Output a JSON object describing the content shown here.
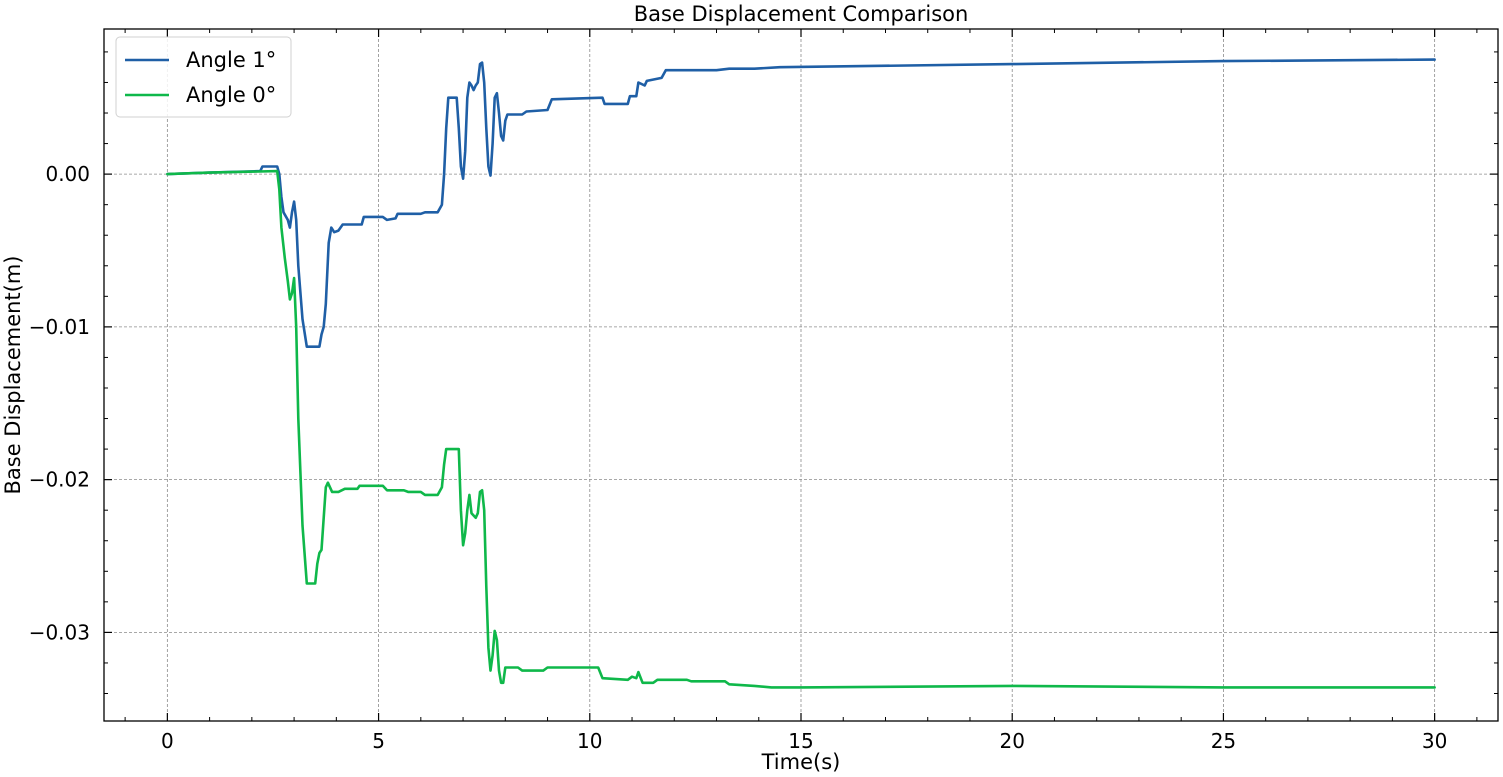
{
  "chart_data": {
    "type": "line",
    "title": "Base Displacement Comparison",
    "xlabel": "Time(s)",
    "ylabel": "Base Displacement(m)",
    "xlim": [
      -1.5,
      31.5
    ],
    "ylim": [
      -0.0358,
      0.0095
    ],
    "grid": true,
    "legend_position": "top-left",
    "x_ticks": [
      0,
      5,
      10,
      15,
      20,
      25,
      30
    ],
    "x_tick_labels": [
      "0",
      "5",
      "10",
      "15",
      "20",
      "25",
      "30"
    ],
    "y_ticks": [
      0.0,
      -0.01,
      -0.02,
      -0.03
    ],
    "y_tick_labels": [
      "0.00",
      "−0.01",
      "−0.02",
      "−0.03"
    ],
    "series": [
      {
        "name": "Angle 1°",
        "color": "#1f5fa6",
        "points": [
          [
            0,
            0.0
          ],
          [
            1.0,
            0.0001
          ],
          [
            2.2,
            0.0002
          ],
          [
            2.25,
            0.0005
          ],
          [
            2.6,
            0.0005
          ],
          [
            2.65,
            0.0
          ],
          [
            2.7,
            -0.0015
          ],
          [
            2.75,
            -0.0025
          ],
          [
            2.85,
            -0.003
          ],
          [
            2.9,
            -0.0035
          ],
          [
            2.95,
            -0.0025
          ],
          [
            3.0,
            -0.0018
          ],
          [
            3.05,
            -0.003
          ],
          [
            3.1,
            -0.006
          ],
          [
            3.2,
            -0.0095
          ],
          [
            3.3,
            -0.0113
          ],
          [
            3.6,
            -0.0113
          ],
          [
            3.65,
            -0.0105
          ],
          [
            3.7,
            -0.01
          ],
          [
            3.75,
            -0.0085
          ],
          [
            3.82,
            -0.0045
          ],
          [
            3.88,
            -0.0035
          ],
          [
            3.95,
            -0.0038
          ],
          [
            4.05,
            -0.0037
          ],
          [
            4.15,
            -0.0033
          ],
          [
            4.5,
            -0.0033
          ],
          [
            4.6,
            -0.0033
          ],
          [
            4.65,
            -0.0028
          ],
          [
            5.1,
            -0.0028
          ],
          [
            5.2,
            -0.003
          ],
          [
            5.4,
            -0.0029
          ],
          [
            5.45,
            -0.0026
          ],
          [
            6.0,
            -0.0026
          ],
          [
            6.1,
            -0.0025
          ],
          [
            6.4,
            -0.0025
          ],
          [
            6.5,
            -0.002
          ],
          [
            6.55,
            0.0
          ],
          [
            6.6,
            0.003
          ],
          [
            6.65,
            0.005
          ],
          [
            6.85,
            0.005
          ],
          [
            6.9,
            0.003
          ],
          [
            6.95,
            0.0005
          ],
          [
            7.0,
            -0.0003
          ],
          [
            7.05,
            0.0015
          ],
          [
            7.1,
            0.005
          ],
          [
            7.15,
            0.006
          ],
          [
            7.2,
            0.0058
          ],
          [
            7.25,
            0.0055
          ],
          [
            7.3,
            0.0058
          ],
          [
            7.35,
            0.006
          ],
          [
            7.4,
            0.0072
          ],
          [
            7.45,
            0.0073
          ],
          [
            7.5,
            0.006
          ],
          [
            7.55,
            0.003
          ],
          [
            7.6,
            0.0005
          ],
          [
            7.65,
            -0.0001
          ],
          [
            7.7,
            0.002
          ],
          [
            7.75,
            0.005
          ],
          [
            7.8,
            0.0053
          ],
          [
            7.85,
            0.004
          ],
          [
            7.9,
            0.0025
          ],
          [
            7.95,
            0.0022
          ],
          [
            8.0,
            0.0035
          ],
          [
            8.05,
            0.0039
          ],
          [
            8.4,
            0.0039
          ],
          [
            8.5,
            0.0041
          ],
          [
            9.0,
            0.0042
          ],
          [
            9.1,
            0.0049
          ],
          [
            10.3,
            0.005
          ],
          [
            10.35,
            0.0046
          ],
          [
            10.9,
            0.0046
          ],
          [
            10.95,
            0.0051
          ],
          [
            11.1,
            0.0051
          ],
          [
            11.15,
            0.006
          ],
          [
            11.3,
            0.0058
          ],
          [
            11.35,
            0.0061
          ],
          [
            11.7,
            0.0063
          ],
          [
            11.8,
            0.0068
          ],
          [
            13.0,
            0.0068
          ],
          [
            13.3,
            0.0069
          ],
          [
            13.9,
            0.0069
          ],
          [
            14.5,
            0.007
          ],
          [
            20.0,
            0.0072
          ],
          [
            25.0,
            0.0074
          ],
          [
            30.0,
            0.0075
          ]
        ]
      },
      {
        "name": "Angle 0°",
        "color": "#0fb84a",
        "points": [
          [
            0,
            0.0
          ],
          [
            1.0,
            0.0001
          ],
          [
            2.6,
            0.0002
          ],
          [
            2.65,
            -0.001
          ],
          [
            2.7,
            -0.0035
          ],
          [
            2.78,
            -0.0055
          ],
          [
            2.85,
            -0.007
          ],
          [
            2.9,
            -0.0082
          ],
          [
            2.95,
            -0.0078
          ],
          [
            3.0,
            -0.0068
          ],
          [
            3.05,
            -0.01
          ],
          [
            3.1,
            -0.016
          ],
          [
            3.2,
            -0.023
          ],
          [
            3.3,
            -0.0268
          ],
          [
            3.5,
            -0.0268
          ],
          [
            3.55,
            -0.0255
          ],
          [
            3.6,
            -0.0248
          ],
          [
            3.65,
            -0.0246
          ],
          [
            3.75,
            -0.0205
          ],
          [
            3.8,
            -0.0202
          ],
          [
            3.9,
            -0.0208
          ],
          [
            4.05,
            -0.0208
          ],
          [
            4.2,
            -0.0206
          ],
          [
            4.5,
            -0.0206
          ],
          [
            4.55,
            -0.0204
          ],
          [
            5.1,
            -0.0204
          ],
          [
            5.2,
            -0.0207
          ],
          [
            5.6,
            -0.0207
          ],
          [
            5.7,
            -0.0208
          ],
          [
            6.0,
            -0.0208
          ],
          [
            6.1,
            -0.021
          ],
          [
            6.4,
            -0.021
          ],
          [
            6.5,
            -0.0205
          ],
          [
            6.55,
            -0.019
          ],
          [
            6.6,
            -0.018
          ],
          [
            6.9,
            -0.018
          ],
          [
            6.95,
            -0.022
          ],
          [
            7.0,
            -0.0243
          ],
          [
            7.05,
            -0.0235
          ],
          [
            7.1,
            -0.022
          ],
          [
            7.15,
            -0.021
          ],
          [
            7.2,
            -0.0222
          ],
          [
            7.3,
            -0.0225
          ],
          [
            7.35,
            -0.0222
          ],
          [
            7.4,
            -0.0208
          ],
          [
            7.45,
            -0.0207
          ],
          [
            7.5,
            -0.022
          ],
          [
            7.55,
            -0.027
          ],
          [
            7.6,
            -0.031
          ],
          [
            7.65,
            -0.0325
          ],
          [
            7.7,
            -0.0315
          ],
          [
            7.75,
            -0.0299
          ],
          [
            7.8,
            -0.0305
          ],
          [
            7.85,
            -0.0325
          ],
          [
            7.9,
            -0.0333
          ],
          [
            7.95,
            -0.0333
          ],
          [
            8.0,
            -0.0323
          ],
          [
            8.3,
            -0.0323
          ],
          [
            8.4,
            -0.0325
          ],
          [
            8.9,
            -0.0325
          ],
          [
            9.0,
            -0.0323
          ],
          [
            10.2,
            -0.0323
          ],
          [
            10.3,
            -0.033
          ],
          [
            10.9,
            -0.0331
          ],
          [
            11.0,
            -0.0329
          ],
          [
            11.1,
            -0.033
          ],
          [
            11.15,
            -0.0326
          ],
          [
            11.25,
            -0.0333
          ],
          [
            11.5,
            -0.0333
          ],
          [
            11.6,
            -0.0331
          ],
          [
            12.3,
            -0.0331
          ],
          [
            12.4,
            -0.0332
          ],
          [
            13.2,
            -0.0332
          ],
          [
            13.3,
            -0.0334
          ],
          [
            13.9,
            -0.0335
          ],
          [
            14.3,
            -0.0336
          ],
          [
            15.0,
            -0.0336
          ],
          [
            20.0,
            -0.0335
          ],
          [
            25.0,
            -0.0336
          ],
          [
            30.0,
            -0.0336
          ]
        ]
      }
    ]
  }
}
